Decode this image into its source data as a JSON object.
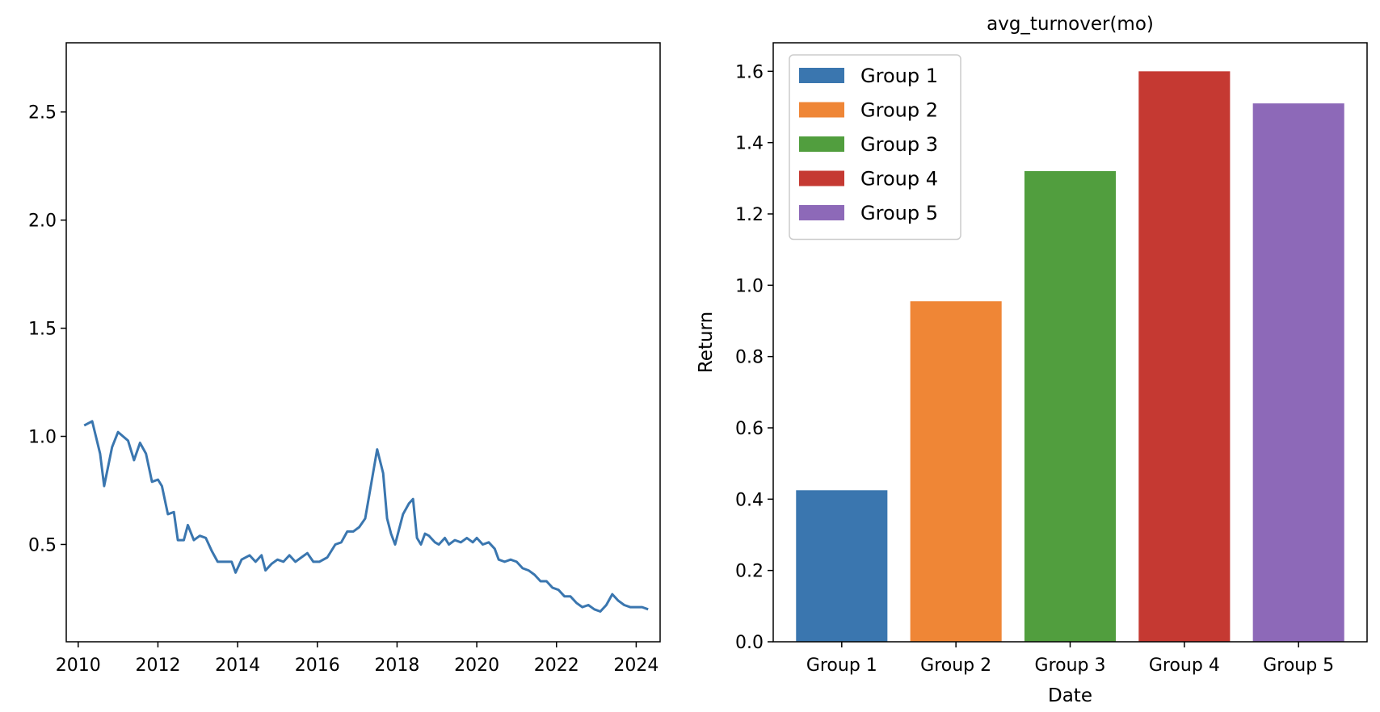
{
  "chart_data": [
    {
      "type": "line",
      "title": "",
      "xlabel": "",
      "ylabel": "",
      "xlim": [
        2009.7,
        2024.6
      ],
      "ylim": [
        0.05,
        2.82
      ],
      "xticks": [
        2010,
        2012,
        2014,
        2016,
        2018,
        2020,
        2022,
        2024
      ],
      "xtick_labels": [
        "2010",
        "2012",
        "2014",
        "2016",
        "2018",
        "2020",
        "2022",
        "2024"
      ],
      "yticks": [
        0.5,
        1.0,
        1.5,
        2.0,
        2.5
      ],
      "ytick_labels": [
        "0.5",
        "1.0",
        "1.5",
        "2.0",
        "2.5"
      ],
      "grid": false,
      "series": [
        {
          "color": "#3a76af",
          "points": [
            [
              2010.15,
              1.05
            ],
            [
              2010.35,
              1.07
            ],
            [
              2010.55,
              0.92
            ],
            [
              2010.65,
              0.77
            ],
            [
              2010.85,
              0.95
            ],
            [
              2011.0,
              1.02
            ],
            [
              2011.25,
              0.98
            ],
            [
              2011.4,
              0.89
            ],
            [
              2011.55,
              0.97
            ],
            [
              2011.7,
              0.92
            ],
            [
              2011.85,
              0.79
            ],
            [
              2012.0,
              0.8
            ],
            [
              2012.1,
              0.77
            ],
            [
              2012.25,
              0.64
            ],
            [
              2012.4,
              0.65
            ],
            [
              2012.5,
              0.52
            ],
            [
              2012.65,
              0.52
            ],
            [
              2012.75,
              0.59
            ],
            [
              2012.9,
              0.52
            ],
            [
              2013.05,
              0.54
            ],
            [
              2013.2,
              0.53
            ],
            [
              2013.35,
              0.47
            ],
            [
              2013.5,
              0.42
            ],
            [
              2013.7,
              0.42
            ],
            [
              2013.85,
              0.42
            ],
            [
              2013.95,
              0.37
            ],
            [
              2014.1,
              0.43
            ],
            [
              2014.3,
              0.45
            ],
            [
              2014.45,
              0.42
            ],
            [
              2014.6,
              0.45
            ],
            [
              2014.7,
              0.38
            ],
            [
              2014.85,
              0.41
            ],
            [
              2015.0,
              0.43
            ],
            [
              2015.15,
              0.42
            ],
            [
              2015.3,
              0.45
            ],
            [
              2015.45,
              0.42
            ],
            [
              2015.6,
              0.44
            ],
            [
              2015.75,
              0.46
            ],
            [
              2015.9,
              0.42
            ],
            [
              2016.05,
              0.42
            ],
            [
              2016.25,
              0.44
            ],
            [
              2016.45,
              0.5
            ],
            [
              2016.6,
              0.51
            ],
            [
              2016.75,
              0.56
            ],
            [
              2016.9,
              0.56
            ],
            [
              2017.05,
              0.58
            ],
            [
              2017.2,
              0.62
            ],
            [
              2017.35,
              0.78
            ],
            [
              2017.5,
              0.94
            ],
            [
              2017.65,
              0.83
            ],
            [
              2017.75,
              0.62
            ],
            [
              2017.85,
              0.55
            ],
            [
              2017.95,
              0.5
            ],
            [
              2018.05,
              0.57
            ],
            [
              2018.15,
              0.64
            ],
            [
              2018.3,
              0.69
            ],
            [
              2018.4,
              0.71
            ],
            [
              2018.5,
              0.53
            ],
            [
              2018.6,
              0.5
            ],
            [
              2018.7,
              0.55
            ],
            [
              2018.8,
              0.54
            ],
            [
              2018.95,
              0.51
            ],
            [
              2019.05,
              0.5
            ],
            [
              2019.2,
              0.53
            ],
            [
              2019.3,
              0.5
            ],
            [
              2019.45,
              0.52
            ],
            [
              2019.6,
              0.51
            ],
            [
              2019.75,
              0.53
            ],
            [
              2019.9,
              0.51
            ],
            [
              2020.0,
              0.53
            ],
            [
              2020.15,
              0.5
            ],
            [
              2020.3,
              0.51
            ],
            [
              2020.45,
              0.48
            ],
            [
              2020.55,
              0.43
            ],
            [
              2020.7,
              0.42
            ],
            [
              2020.85,
              0.43
            ],
            [
              2021.0,
              0.42
            ],
            [
              2021.15,
              0.39
            ],
            [
              2021.3,
              0.38
            ],
            [
              2021.45,
              0.36
            ],
            [
              2021.6,
              0.33
            ],
            [
              2021.75,
              0.33
            ],
            [
              2021.9,
              0.3
            ],
            [
              2022.05,
              0.29
            ],
            [
              2022.2,
              0.26
            ],
            [
              2022.35,
              0.26
            ],
            [
              2022.5,
              0.23
            ],
            [
              2022.65,
              0.21
            ],
            [
              2022.8,
              0.22
            ],
            [
              2022.95,
              0.2
            ],
            [
              2023.1,
              0.19
            ],
            [
              2023.25,
              0.22
            ],
            [
              2023.4,
              0.27
            ],
            [
              2023.55,
              0.24
            ],
            [
              2023.7,
              0.22
            ],
            [
              2023.85,
              0.21
            ],
            [
              2024.0,
              0.21
            ],
            [
              2024.15,
              0.21
            ],
            [
              2024.3,
              0.2
            ]
          ]
        }
      ]
    },
    {
      "type": "bar",
      "title": "avg_turnover(mo)",
      "xlabel": "Date",
      "ylabel": "Return",
      "categories": [
        "Group 1",
        "Group 2",
        "Group 3",
        "Group 4",
        "Group 5"
      ],
      "values": [
        0.425,
        0.955,
        1.32,
        1.6,
        1.51
      ],
      "colors": [
        "#3a76af",
        "#ef8636",
        "#519e3e",
        "#c53932",
        "#8d69b8"
      ],
      "ylim": [
        0.0,
        1.68
      ],
      "yticks": [
        0.0,
        0.2,
        0.4,
        0.6,
        0.8,
        1.0,
        1.2,
        1.4,
        1.6
      ],
      "ytick_labels": [
        "0.0",
        "0.2",
        "0.4",
        "0.6",
        "0.8",
        "1.0",
        "1.2",
        "1.4",
        "1.6"
      ],
      "legend": {
        "placement": "upper-left",
        "entries": [
          "Group 1",
          "Group 2",
          "Group 3",
          "Group 4",
          "Group 5"
        ]
      },
      "grid": false
    }
  ]
}
